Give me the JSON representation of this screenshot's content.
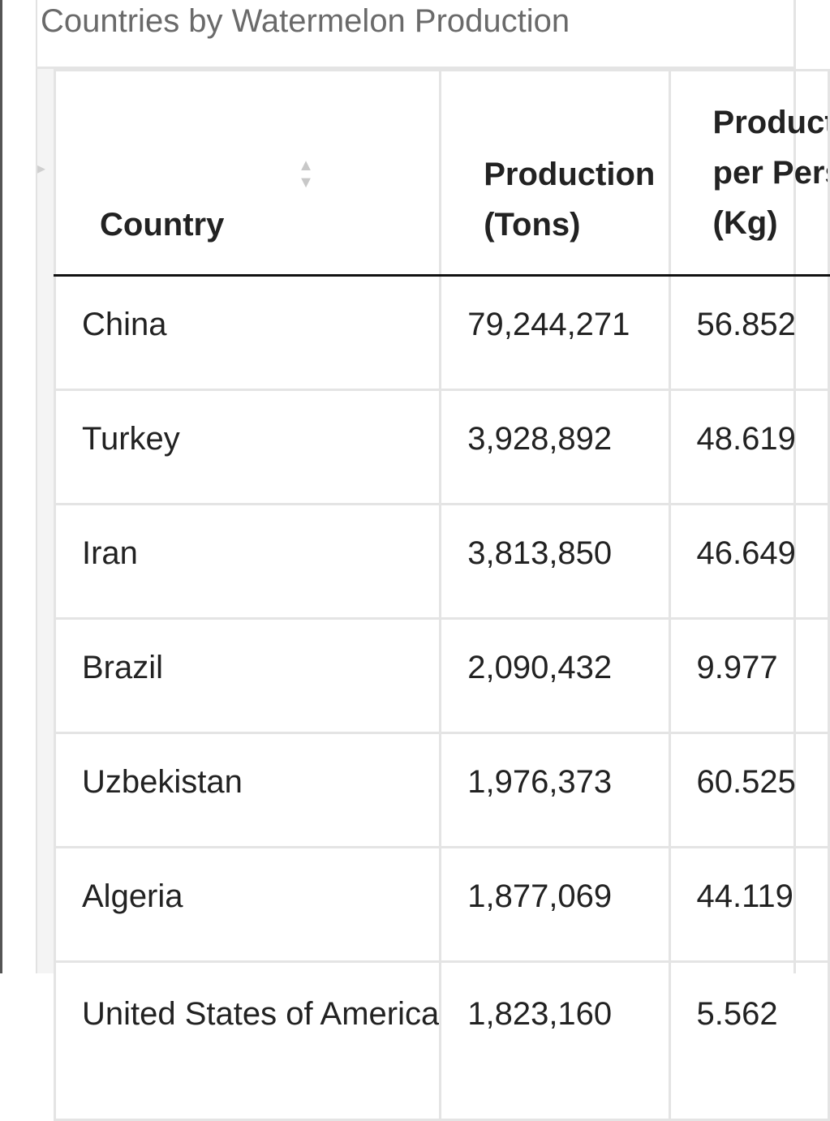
{
  "caption": "Countries by Watermelon Production",
  "columns": {
    "country": "Country",
    "production": "Production (Tons)",
    "per_person_line1": "Production",
    "per_person_line2": "per Person",
    "per_person_line3": "(Kg)"
  },
  "rows": [
    {
      "country": "China",
      "production": "79,244,271",
      "per_person": "56.852"
    },
    {
      "country": "Turkey",
      "production": "3,928,892",
      "per_person": "48.619"
    },
    {
      "country": "Iran",
      "production": "3,813,850",
      "per_person": "46.649"
    },
    {
      "country": "Brazil",
      "production": "2,090,432",
      "per_person": "9.977"
    },
    {
      "country": "Uzbekistan",
      "production": "1,976,373",
      "per_person": "60.525"
    },
    {
      "country": "Algeria",
      "production": "1,877,069",
      "per_person": "44.119"
    },
    {
      "country": "United States of America",
      "production": "1,823,160",
      "per_person": "5.562"
    }
  ],
  "icons": {
    "sort": "sort-arrows-icon"
  },
  "colors": {
    "border": "#e4e4e4",
    "header_rule": "#111111",
    "caption_text": "#6a6a6a",
    "sort_icon": "#c8c8c8"
  }
}
